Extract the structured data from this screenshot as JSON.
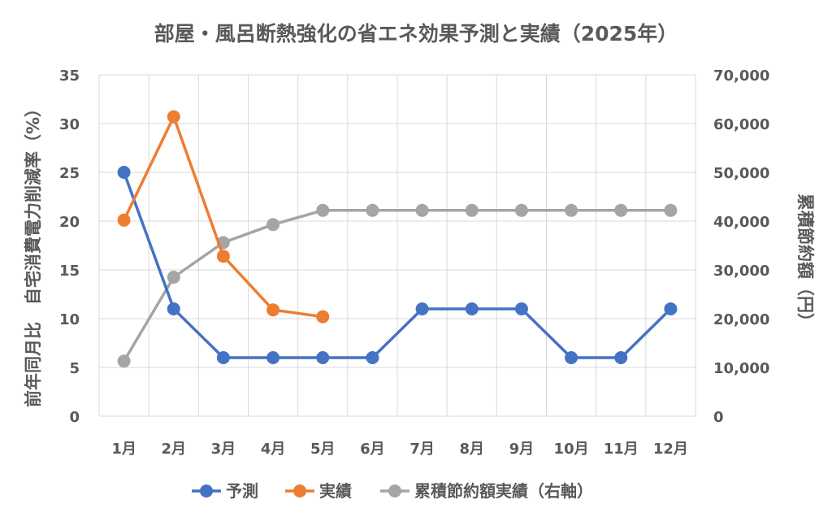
{
  "chart_data": {
    "type": "line",
    "title": "部屋・風呂断熱強化の省エネ効果予測と実績（2025年）",
    "categories": [
      "1月",
      "2月",
      "3月",
      "4月",
      "5月",
      "6月",
      "7月",
      "8月",
      "9月",
      "10月",
      "11月",
      "12月"
    ],
    "y_left": {
      "label": "前年同月比　自宅消費電力削減率（%）",
      "range": [
        0,
        35
      ],
      "ticks": [
        "0",
        "5",
        "10",
        "15",
        "20",
        "25",
        "30",
        "35"
      ]
    },
    "y_right": {
      "label": "累積節約額（円）",
      "range": [
        0,
        70000
      ],
      "ticks": [
        "0",
        "10,000",
        "20,000",
        "30,000",
        "40,000",
        "50,000",
        "60,000",
        "70,000"
      ]
    },
    "grid": true,
    "legend_position": "bottom",
    "series": [
      {
        "name": "予測",
        "axis": "left",
        "color": "#4472c4",
        "values": [
          25,
          11,
          6,
          6,
          6,
          6,
          11,
          11,
          11,
          6,
          6,
          11
        ]
      },
      {
        "name": "実績",
        "axis": "left",
        "color": "#ed7d31",
        "values": [
          20.1,
          30.7,
          16.4,
          10.9,
          10.2,
          null,
          null,
          null,
          null,
          null,
          null,
          null
        ]
      },
      {
        "name": "累積節約額実績（右軸）",
        "axis": "right",
        "color": "#a5a5a5",
        "values": [
          11300,
          28500,
          35600,
          39300,
          42200,
          42200,
          42200,
          42200,
          42200,
          42200,
          42200,
          42200
        ]
      }
    ]
  }
}
